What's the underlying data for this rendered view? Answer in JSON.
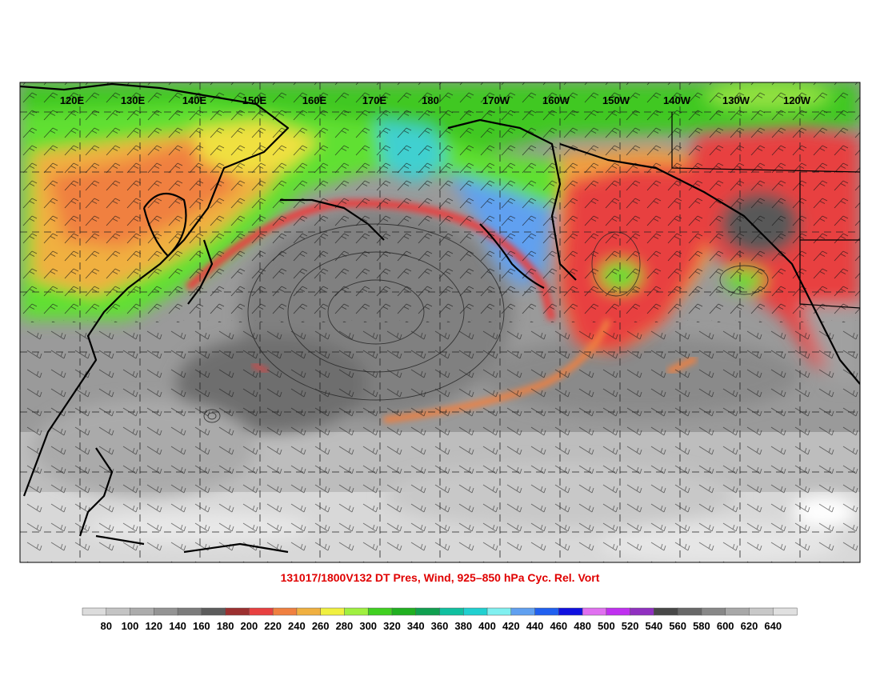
{
  "map": {
    "title": "131017/1800V132 DT Pres, Wind, 925–850 hPa Cyc. Rel. Vort",
    "longitude_labels": [
      "120E",
      "130E",
      "140E",
      "150E",
      "160E",
      "170E",
      "180",
      "170W",
      "160W",
      "150W",
      "140W",
      "130W",
      "120W"
    ]
  },
  "colorbar": {
    "labels": [
      "80",
      "100",
      "120",
      "140",
      "160",
      "180",
      "200",
      "220",
      "240",
      "260",
      "280",
      "300",
      "320",
      "340",
      "360",
      "380",
      "400",
      "420",
      "440",
      "460",
      "480",
      "500",
      "520",
      "540",
      "560",
      "580",
      "600",
      "620",
      "640"
    ],
    "colors": [
      "#dcdcdc",
      "#c4c4c4",
      "#acacac",
      "#949494",
      "#7c7c7c",
      "#5c5c5c",
      "#9c3030",
      "#e84040",
      "#f08040",
      "#f0b040",
      "#f0f040",
      "#a0f040",
      "#40d020",
      "#20b020",
      "#10a050",
      "#10c0a0",
      "#20d0d0",
      "#80f0f0",
      "#60a0f0",
      "#2060f0",
      "#1010e0",
      "#e070f0",
      "#c030f0",
      "#9030c0",
      "#484848",
      "#686868",
      "#888888",
      "#a8a8a8",
      "#c8c8c8",
      "#e0e0e0"
    ]
  },
  "palette": {
    "title_color": "#e00000"
  }
}
